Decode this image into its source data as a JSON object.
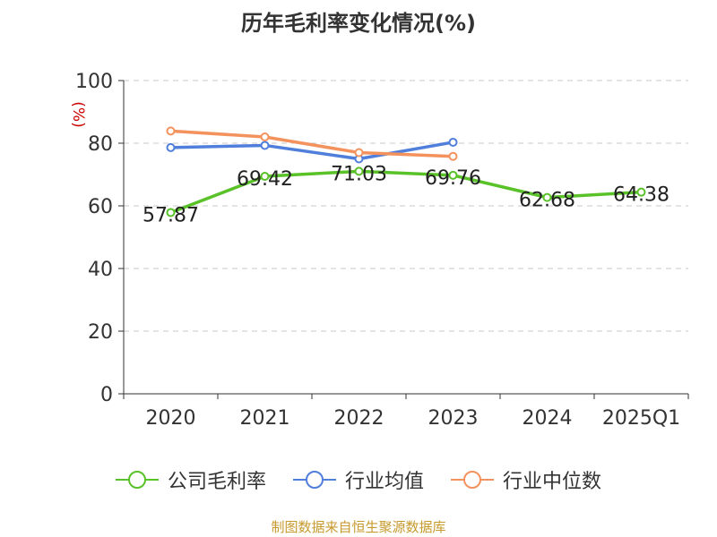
{
  "chart_data": {
    "type": "line",
    "title": "历年毛利率变化情况(%)",
    "ylabel": "(%)",
    "xlabel": "",
    "categories": [
      "2020",
      "2021",
      "2022",
      "2023",
      "2024",
      "2025Q1"
    ],
    "ylim": [
      0,
      100
    ],
    "yticks": [
      0,
      20,
      40,
      60,
      80,
      100
    ],
    "grid": true,
    "legend_position": "bottom",
    "series": [
      {
        "name": "公司毛利率",
        "color": "#5ac229",
        "values": [
          57.87,
          69.42,
          71.03,
          69.76,
          62.68,
          64.38
        ],
        "labels": [
          "57.87",
          "69.42",
          "71.03",
          "69.76",
          "62.68",
          "64.38"
        ]
      },
      {
        "name": "行业均值",
        "color": "#4f7fdb",
        "values": [
          78.6,
          79.3,
          75.0,
          80.3,
          null,
          null
        ]
      },
      {
        "name": "行业中位数",
        "color": "#f4925e",
        "values": [
          83.9,
          82.0,
          77.0,
          75.8,
          null,
          null
        ]
      }
    ]
  },
  "source": "制图数据来自恒生聚源数据库"
}
